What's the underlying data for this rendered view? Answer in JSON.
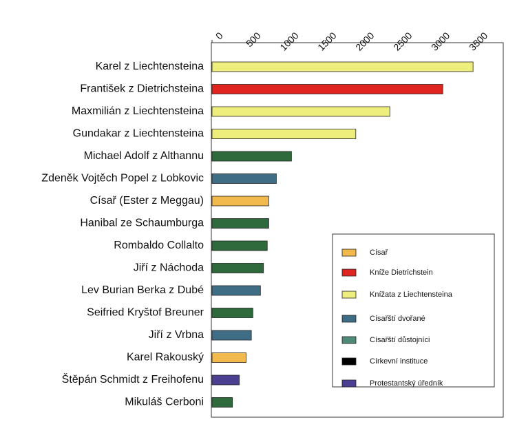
{
  "chart_data": {
    "type": "barh",
    "categories": [
      "Karel z Liechtensteina",
      "František z Dietrichsteina",
      "Maxmilián z Liechtensteina",
      "Gundakar z Liechtensteina",
      "Michael Adolf z Althannu",
      "Zdeněk Vojtěch Popel z Lobkovic",
      "Císař (Ester z Meggau)",
      "Hanibal ze Schaumburga",
      "Rombaldo Collalto",
      "Jiří z Náchoda",
      "Lev Burian Berka z Dubé",
      "Seifried Kryštof Breuner",
      "Jiří z Vrbna",
      "Karel Rakouský",
      "Štěpán Schmidt z Freihofenu",
      "Mikuláš Cerboni"
    ],
    "values": [
      3450,
      3050,
      2350,
      1900,
      1050,
      850,
      750,
      750,
      730,
      680,
      640,
      540,
      520,
      450,
      360,
      270
    ],
    "colors": [
      "#eeee7c",
      "#e0241f",
      "#eeee7c",
      "#eeee7c",
      "#2f6a3c",
      "#3f6d86",
      "#f2b94c",
      "#2f6a3c",
      "#2f6a3c",
      "#2f6a3c",
      "#3f6d86",
      "#2f6a3c",
      "#3f6d86",
      "#f2b94c",
      "#4a3f90",
      "#2f6a3c"
    ],
    "xlim": [
      0,
      3840
    ],
    "xticks": [
      0,
      500,
      1000,
      1500,
      2000,
      2500,
      3000,
      3500
    ],
    "legend": [
      {
        "name": "Císař",
        "color": "#f2b94c"
      },
      {
        "name": "Kníže Dietrichstein",
        "color": "#e0241f"
      },
      {
        "name": "Knížata z Liechtensteina",
        "color": "#eeee7c"
      },
      {
        "name": "Císařští dvořané",
        "color": "#3f6d86"
      },
      {
        "name": "Císařští důstojníci",
        "color": "#4f8a78"
      },
      {
        "name": "Církevní instituce",
        "color": "#000000"
      },
      {
        "name": "Protestantský úředník",
        "color": "#4a3f90"
      }
    ]
  }
}
